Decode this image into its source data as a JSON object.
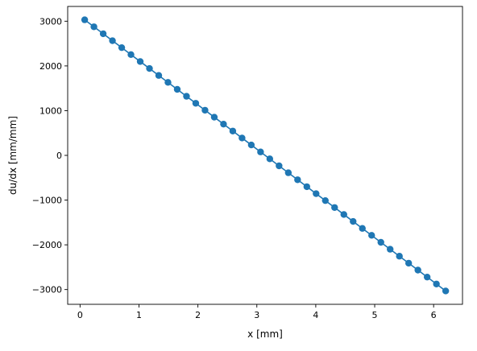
{
  "chart_data": {
    "type": "line",
    "title": "",
    "xlabel": "x [mm]",
    "ylabel": "du/dx [mm/mm]",
    "xlim": [
      -0.21,
      6.49
    ],
    "ylim": [
      -3330,
      3330
    ],
    "xticks": [
      0,
      1,
      2,
      3,
      4,
      5,
      6
    ],
    "xtick_labels": [
      "0",
      "1",
      "2",
      "3",
      "4",
      "5",
      "6"
    ],
    "yticks": [
      -3000,
      -2000,
      -1000,
      0,
      1000,
      2000,
      3000
    ],
    "ytick_labels": [
      "−3000",
      "−2000",
      "−1000",
      "0",
      "1000",
      "2000",
      "3000"
    ],
    "grid": false,
    "marker": "circle",
    "color": "#1f77b4",
    "series": [
      {
        "x": [
          0.0785,
          0.2356,
          0.3927,
          0.5498,
          0.7069,
          0.8639,
          1.021,
          1.1781,
          1.3352,
          1.4923,
          1.6493,
          1.8064,
          1.9635,
          2.1206,
          2.2777,
          2.4347,
          2.5918,
          2.7489,
          2.906,
          3.0631,
          3.2201,
          3.3772,
          3.5343,
          3.6914,
          3.8485,
          4.0055,
          4.1626,
          4.3197,
          4.4768,
          4.6339,
          4.7909,
          4.948,
          5.1051,
          5.2622,
          5.4193,
          5.5763,
          5.7334,
          5.8905,
          6.0476,
          6.2047
        ],
        "y": [
          3031,
          2875,
          2720,
          2564,
          2409,
          2253,
          2098,
          1943,
          1787,
          1632,
          1476,
          1321,
          1165,
          1010,
          854,
          699,
          544,
          388,
          233,
          77,
          -78,
          -234,
          -389,
          -545,
          -700,
          -856,
          -1011,
          -1166,
          -1322,
          -1477,
          -1633,
          -1788,
          -1944,
          -2099,
          -2254,
          -2410,
          -2565,
          -2721,
          -2876,
          -3032
        ]
      }
    ]
  }
}
